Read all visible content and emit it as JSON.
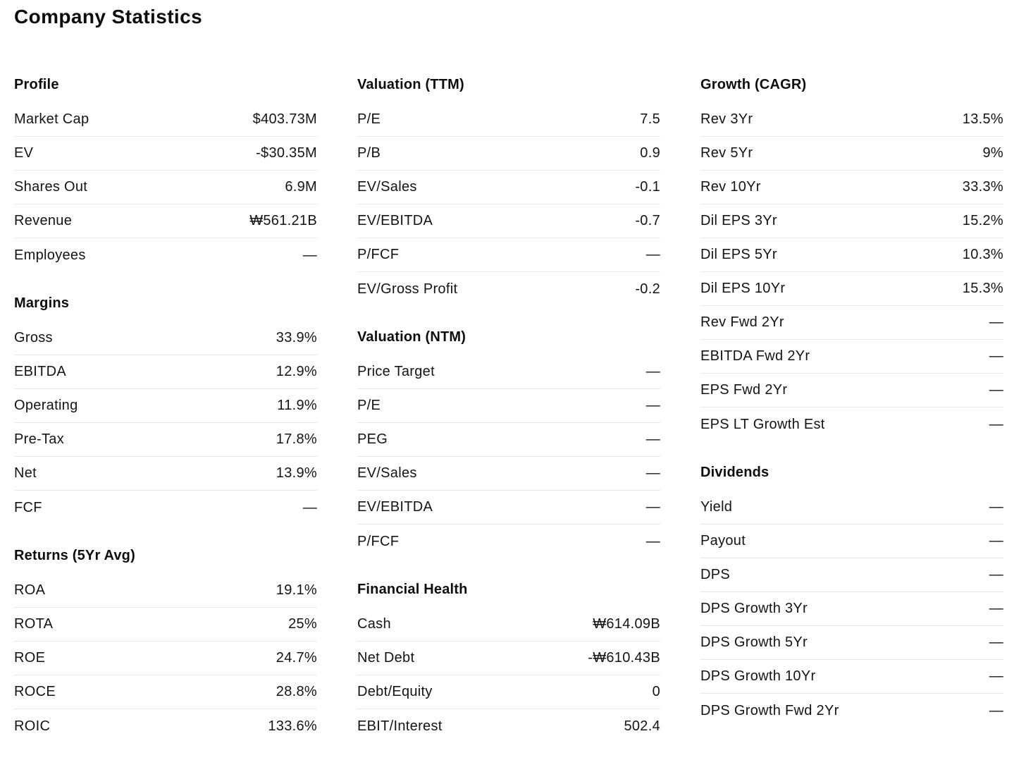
{
  "page_title": "Company Statistics",
  "columns": [
    {
      "sections": [
        {
          "title": "Profile",
          "rows": [
            {
              "label": "Market Cap",
              "value": "$403.73M"
            },
            {
              "label": "EV",
              "value": "-$30.35M"
            },
            {
              "label": "Shares Out",
              "value": "6.9M"
            },
            {
              "label": "Revenue",
              "value": "₩561.21B"
            },
            {
              "label": "Employees",
              "value": "—"
            }
          ]
        },
        {
          "title": "Margins",
          "rows": [
            {
              "label": "Gross",
              "value": "33.9%"
            },
            {
              "label": "EBITDA",
              "value": "12.9%"
            },
            {
              "label": "Operating",
              "value": "11.9%"
            },
            {
              "label": "Pre-Tax",
              "value": "17.8%"
            },
            {
              "label": "Net",
              "value": "13.9%"
            },
            {
              "label": "FCF",
              "value": "—"
            }
          ]
        },
        {
          "title": "Returns (5Yr Avg)",
          "rows": [
            {
              "label": "ROA",
              "value": "19.1%"
            },
            {
              "label": "ROTA",
              "value": "25%"
            },
            {
              "label": "ROE",
              "value": "24.7%"
            },
            {
              "label": "ROCE",
              "value": "28.8%"
            },
            {
              "label": "ROIC",
              "value": "133.6%"
            }
          ]
        }
      ]
    },
    {
      "sections": [
        {
          "title": "Valuation (TTM)",
          "rows": [
            {
              "label": "P/E",
              "value": "7.5"
            },
            {
              "label": "P/B",
              "value": "0.9"
            },
            {
              "label": "EV/Sales",
              "value": "-0.1"
            },
            {
              "label": "EV/EBITDA",
              "value": "-0.7"
            },
            {
              "label": "P/FCF",
              "value": "—"
            },
            {
              "label": "EV/Gross Profit",
              "value": "-0.2"
            }
          ]
        },
        {
          "title": "Valuation (NTM)",
          "rows": [
            {
              "label": "Price Target",
              "value": "—"
            },
            {
              "label": "P/E",
              "value": "—"
            },
            {
              "label": "PEG",
              "value": "—"
            },
            {
              "label": "EV/Sales",
              "value": "—"
            },
            {
              "label": "EV/EBITDA",
              "value": "—"
            },
            {
              "label": "P/FCF",
              "value": "—"
            }
          ]
        },
        {
          "title": "Financial Health",
          "rows": [
            {
              "label": "Cash",
              "value": "₩614.09B"
            },
            {
              "label": "Net Debt",
              "value": "-₩610.43B"
            },
            {
              "label": "Debt/Equity",
              "value": "0"
            },
            {
              "label": "EBIT/Interest",
              "value": "502.4"
            }
          ]
        }
      ]
    },
    {
      "sections": [
        {
          "title": "Growth (CAGR)",
          "rows": [
            {
              "label": "Rev 3Yr",
              "value": "13.5%"
            },
            {
              "label": "Rev 5Yr",
              "value": "9%"
            },
            {
              "label": "Rev 10Yr",
              "value": "33.3%"
            },
            {
              "label": "Dil EPS 3Yr",
              "value": "15.2%"
            },
            {
              "label": "Dil EPS 5Yr",
              "value": "10.3%"
            },
            {
              "label": "Dil EPS 10Yr",
              "value": "15.3%"
            },
            {
              "label": "Rev Fwd 2Yr",
              "value": "—"
            },
            {
              "label": "EBITDA Fwd 2Yr",
              "value": "—"
            },
            {
              "label": "EPS Fwd 2Yr",
              "value": "—"
            },
            {
              "label": "EPS LT Growth Est",
              "value": "—"
            }
          ]
        },
        {
          "title": "Dividends",
          "rows": [
            {
              "label": "Yield",
              "value": "—"
            },
            {
              "label": "Payout",
              "value": "—"
            },
            {
              "label": "DPS",
              "value": "—"
            },
            {
              "label": "DPS Growth 3Yr",
              "value": "—"
            },
            {
              "label": "DPS Growth 5Yr",
              "value": "—"
            },
            {
              "label": "DPS Growth 10Yr",
              "value": "—"
            },
            {
              "label": "DPS Growth Fwd 2Yr",
              "value": "—"
            }
          ]
        }
      ]
    }
  ]
}
